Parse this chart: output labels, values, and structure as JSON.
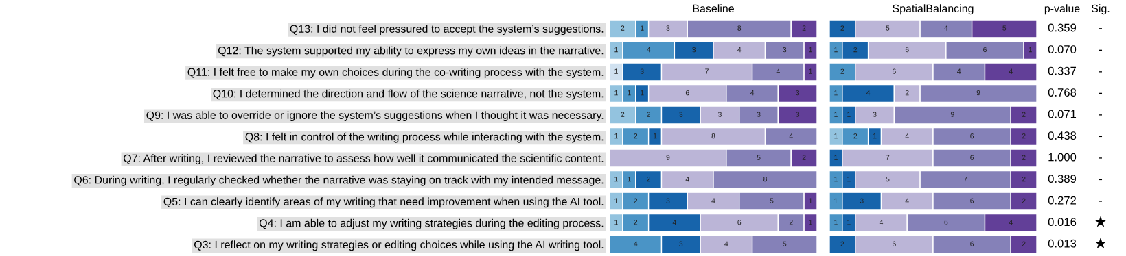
{
  "chart_data": [
    {
      "type": "bar",
      "orientation": "horizontal",
      "stacked": true,
      "title": "Baseline",
      "data_labels": true,
      "tick_labels": "y",
      "xlim": [
        0,
        16
      ],
      "categories": [
        "Q13: I did not feel pressured to accept the system’s suggestions.",
        "Q12: The system supported my ability to express my own ideas in the narrative.",
        "Q11: I felt free to make my own choices during the co-writing process with the system.",
        "Q10: I determined the direction and flow of the science narrative, not the system.",
        "Q9: I was able to override or ignore the system’s suggestions when I thought it was necessary.",
        "Q8: I felt in control of the writing process while interacting with the system.",
        "Q7: After writing, I reviewed the narrative to assess how well it communicated the scientific content.",
        "Q6: During writing, I regularly checked whether the narrative was staying on track with my intended message.",
        "Q5: I can clearly identify areas of my writing that need improvement when using the AI tool.",
        "Q4: I am able to adjust my writing strategies during the editing process.",
        "Q3: I reflect on my writing strategies or editing choices while using the AI writing tool."
      ],
      "series": [
        {
          "color": "#d0e1f0",
          "values": [
            null,
            null,
            1,
            null,
            null,
            null,
            null,
            null,
            null,
            null,
            null
          ]
        },
        {
          "color": "#93c3df",
          "values": [
            2,
            1,
            null,
            1,
            2,
            1,
            null,
            1,
            1,
            1,
            null
          ]
        },
        {
          "color": "#4a94c6",
          "values": [
            1,
            4,
            null,
            1,
            2,
            2,
            null,
            1,
            2,
            2,
            4
          ]
        },
        {
          "color": "#1764ab",
          "values": [
            null,
            3,
            3,
            1,
            3,
            1,
            null,
            2,
            3,
            4,
            3
          ]
        },
        {
          "color": "#bbb5d7",
          "values": [
            3,
            4,
            7,
            6,
            3,
            8,
            9,
            4,
            4,
            6,
            4
          ]
        },
        {
          "color": "#8581b8",
          "values": [
            8,
            3,
            4,
            4,
            3,
            4,
            5,
            8,
            5,
            2,
            5
          ]
        },
        {
          "color": "#623f98",
          "values": [
            2,
            1,
            1,
            3,
            3,
            null,
            2,
            null,
            1,
            1,
            null
          ]
        }
      ]
    },
    {
      "type": "bar",
      "orientation": "horizontal",
      "stacked": true,
      "title": "SpatialBalancing",
      "data_labels": true,
      "tick_labels": false,
      "xlim": [
        0,
        16
      ],
      "categories": [
        null,
        null,
        null,
        null,
        null,
        null,
        null,
        null,
        null,
        null,
        null
      ],
      "series": [
        {
          "color": "#93c3df",
          "values": [
            null,
            null,
            null,
            null,
            null,
            1,
            null,
            null,
            null,
            null,
            null
          ]
        },
        {
          "color": "#4a94c6",
          "values": [
            null,
            1,
            2,
            1,
            1,
            2,
            null,
            1,
            1,
            1,
            null
          ]
        },
        {
          "color": "#1764ab",
          "values": [
            2,
            2,
            null,
            4,
            1,
            1,
            1,
            1,
            3,
            1,
            2
          ]
        },
        {
          "color": "#bbb5d7",
          "values": [
            5,
            6,
            6,
            2,
            3,
            4,
            7,
            5,
            4,
            4,
            6
          ]
        },
        {
          "color": "#8581b8",
          "values": [
            4,
            6,
            4,
            9,
            9,
            6,
            6,
            7,
            6,
            6,
            6
          ]
        },
        {
          "color": "#623f98",
          "values": [
            5,
            1,
            4,
            null,
            2,
            2,
            2,
            2,
            2,
            4,
            2
          ]
        }
      ]
    },
    {
      "type": "other",
      "title": "p-value",
      "annotations": [
        "0.359",
        "0.070",
        "0.337",
        "0.768",
        "0.071",
        "0.438",
        "1.000",
        "0.389",
        "0.272",
        "0.016",
        "0.013"
      ]
    },
    {
      "type": "other",
      "title": "Sig.",
      "annotations": [
        "-",
        "-",
        "-",
        "-",
        "-",
        "-",
        "-",
        "-",
        "-",
        "★",
        "★"
      ]
    }
  ]
}
